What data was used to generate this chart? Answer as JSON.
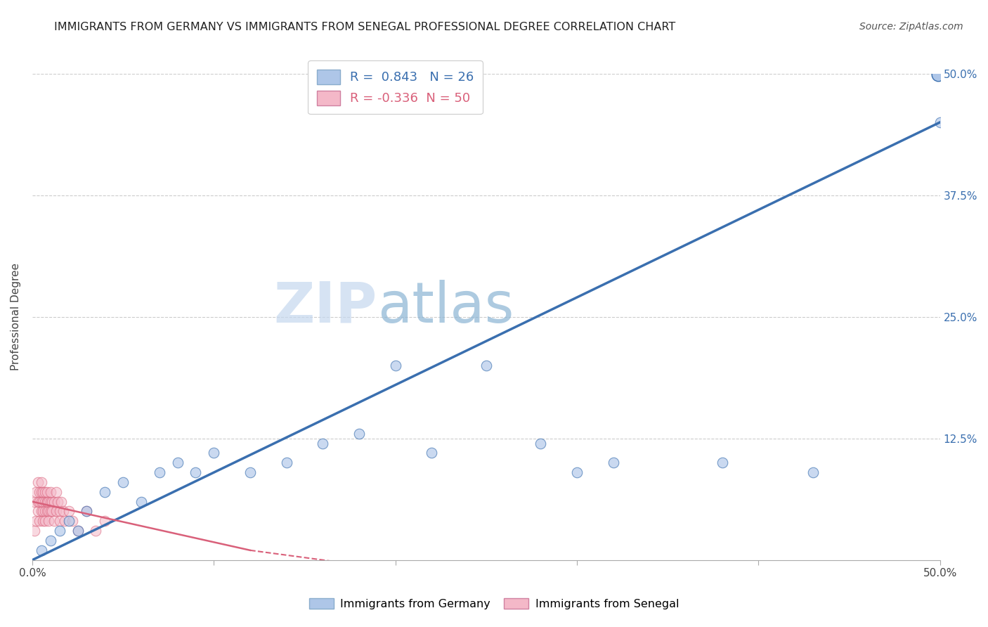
{
  "title": "IMMIGRANTS FROM GERMANY VS IMMIGRANTS FROM SENEGAL PROFESSIONAL DEGREE CORRELATION CHART",
  "source": "Source: ZipAtlas.com",
  "ylabel": "Professional Degree",
  "xlim": [
    0.0,
    0.5
  ],
  "ylim": [
    0.0,
    0.5
  ],
  "germany_R": 0.843,
  "germany_N": 26,
  "senegal_R": -0.336,
  "senegal_N": 50,
  "germany_color": "#aec6e8",
  "senegal_color": "#f4b8c8",
  "germany_line_color": "#3a6faf",
  "senegal_line_color": "#d9607a",
  "watermark_left": "ZIP",
  "watermark_right": "atlas",
  "background_color": "#ffffff",
  "germany_x": [
    0.005,
    0.01,
    0.015,
    0.02,
    0.025,
    0.03,
    0.04,
    0.05,
    0.06,
    0.07,
    0.08,
    0.09,
    0.1,
    0.12,
    0.14,
    0.16,
    0.18,
    0.2,
    0.22,
    0.25,
    0.28,
    0.3,
    0.32,
    0.38,
    0.43,
    0.5
  ],
  "germany_y": [
    0.01,
    0.02,
    0.03,
    0.04,
    0.03,
    0.05,
    0.07,
    0.08,
    0.06,
    0.09,
    0.1,
    0.09,
    0.11,
    0.09,
    0.1,
    0.12,
    0.13,
    0.2,
    0.11,
    0.2,
    0.12,
    0.09,
    0.1,
    0.1,
    0.09,
    0.45
  ],
  "senegal_x": [
    0.001,
    0.001,
    0.002,
    0.002,
    0.003,
    0.003,
    0.003,
    0.004,
    0.004,
    0.004,
    0.005,
    0.005,
    0.005,
    0.005,
    0.006,
    0.006,
    0.006,
    0.006,
    0.007,
    0.007,
    0.007,
    0.007,
    0.008,
    0.008,
    0.008,
    0.008,
    0.009,
    0.009,
    0.009,
    0.01,
    0.01,
    0.01,
    0.011,
    0.011,
    0.012,
    0.012,
    0.013,
    0.013,
    0.014,
    0.015,
    0.015,
    0.016,
    0.017,
    0.018,
    0.02,
    0.022,
    0.025,
    0.03,
    0.035,
    0.04
  ],
  "senegal_y": [
    0.03,
    0.06,
    0.04,
    0.07,
    0.05,
    0.06,
    0.08,
    0.04,
    0.06,
    0.07,
    0.05,
    0.07,
    0.08,
    0.06,
    0.05,
    0.07,
    0.06,
    0.04,
    0.06,
    0.07,
    0.05,
    0.04,
    0.06,
    0.05,
    0.07,
    0.06,
    0.05,
    0.06,
    0.04,
    0.06,
    0.05,
    0.07,
    0.06,
    0.05,
    0.04,
    0.06,
    0.05,
    0.07,
    0.06,
    0.05,
    0.04,
    0.06,
    0.05,
    0.04,
    0.05,
    0.04,
    0.03,
    0.05,
    0.03,
    0.04
  ],
  "germany_line_x": [
    0.0,
    0.5
  ],
  "germany_line_y": [
    0.0,
    0.45
  ],
  "senegal_line_x": [
    0.0,
    0.12
  ],
  "senegal_line_y": [
    0.06,
    0.01
  ]
}
